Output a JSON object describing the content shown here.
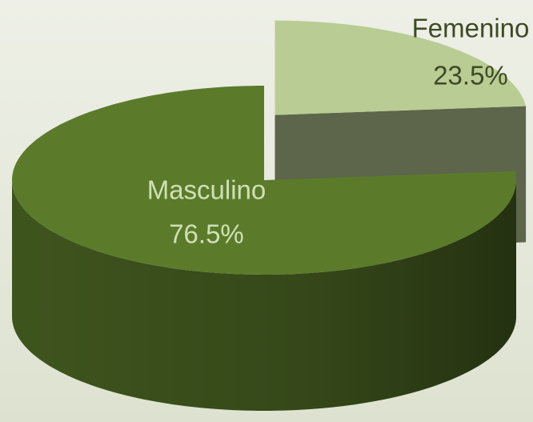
{
  "chart_data": {
    "type": "pie",
    "style": "3d",
    "exploded": true,
    "categories": [
      "Masculino",
      "Femenino"
    ],
    "values": [
      76.5,
      23.5
    ],
    "value_labels": [
      "76.5%",
      "23.5%"
    ],
    "colors": [
      "#5b7b2b",
      "#b9cc93"
    ]
  }
}
